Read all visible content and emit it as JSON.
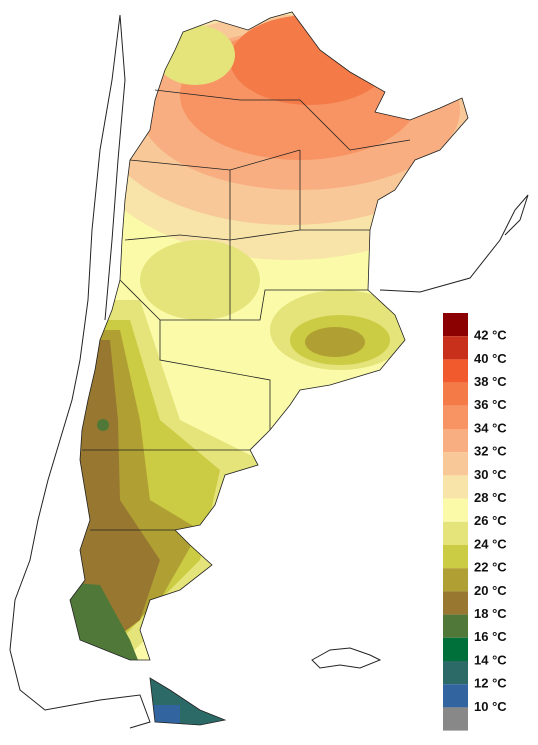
{
  "legend": {
    "colors": [
      "#8b0000",
      "#c8301c",
      "#f05a2c",
      "#f47a48",
      "#f89464",
      "#f8ae80",
      "#f8c898",
      "#f8e4a8",
      "#fafaa8",
      "#e4e47a",
      "#cccc44",
      "#b0a034",
      "#987830",
      "#507838",
      "#00703a",
      "#2c6a68",
      "#3264a0",
      "#888888"
    ],
    "labels": [
      "42 °C",
      "40 °C",
      "38 °C",
      "36 °C",
      "34 °C",
      "32 °C",
      "30 °C",
      "28 °C",
      "26 °C",
      "24 °C",
      "22 °C",
      "20 °C",
      "18 °C",
      "16 °C",
      "14 °C",
      "12 °C",
      "10 °C"
    ]
  }
}
